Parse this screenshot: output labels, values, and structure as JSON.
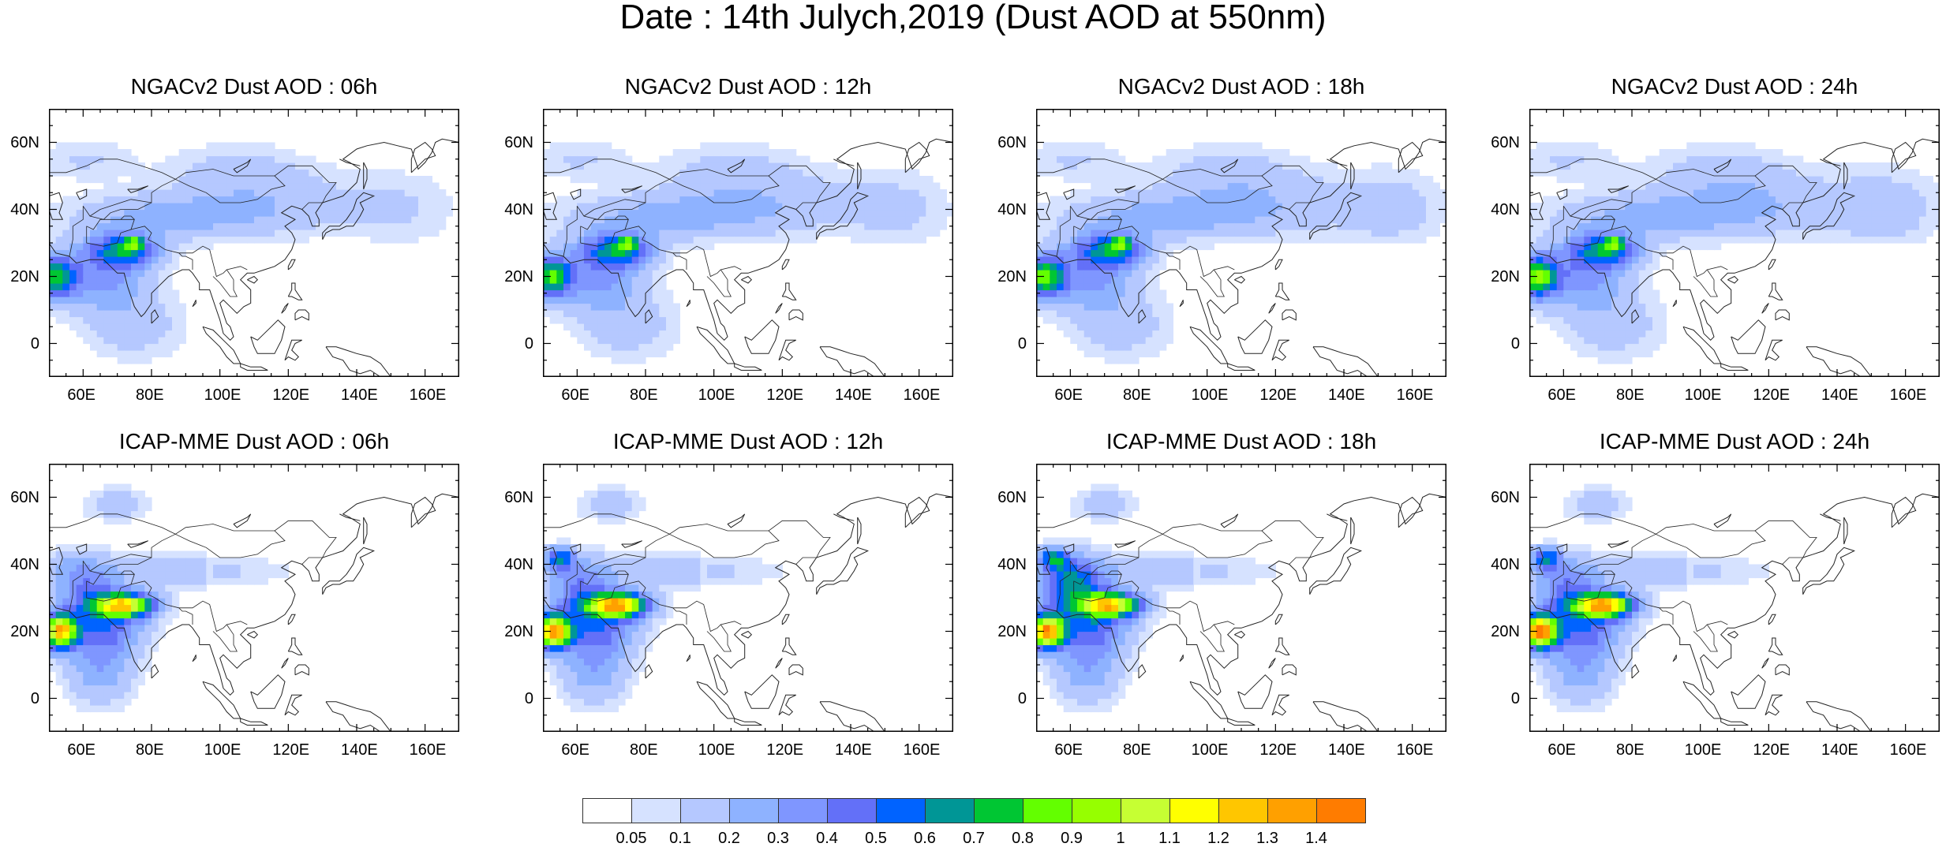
{
  "title": "Date : 14th Julych,2019 (Dust AOD at 550nm)",
  "panels": [
    {
      "title": "NGACv2 Dust AOD : 06h",
      "model": "NGACv2",
      "hour": "06h"
    },
    {
      "title": "NGACv2 Dust AOD : 12h",
      "model": "NGACv2",
      "hour": "12h"
    },
    {
      "title": "NGACv2 Dust AOD : 18h",
      "model": "NGACv2",
      "hour": "18h"
    },
    {
      "title": "NGACv2 Dust AOD : 24h",
      "model": "NGACv2",
      "hour": "24h"
    },
    {
      "title": "ICAP-MME Dust AOD : 06h",
      "model": "ICAP-MME",
      "hour": "06h"
    },
    {
      "title": "ICAP-MME Dust AOD : 12h",
      "model": "ICAP-MME",
      "hour": "12h"
    },
    {
      "title": "ICAP-MME Dust AOD : 18h",
      "model": "ICAP-MME",
      "hour": "18h"
    },
    {
      "title": "ICAP-MME Dust AOD : 24h",
      "model": "ICAP-MME",
      "hour": "24h"
    }
  ],
  "map": {
    "lon_range": [
      50,
      170
    ],
    "lat_range": [
      -10,
      70
    ],
    "lon_ticks": [
      "60E",
      "80E",
      "100E",
      "120E",
      "140E",
      "160E"
    ],
    "lat_ticks": [
      "60N",
      "40N",
      "20N",
      "0"
    ],
    "lon_tick_values": [
      60,
      80,
      100,
      120,
      140,
      160
    ],
    "lat_tick_values": [
      60,
      40,
      20,
      0
    ]
  },
  "colorbar": {
    "labels": [
      "0.05",
      "0.1",
      "0.2",
      "0.3",
      "0.4",
      "0.5",
      "0.6",
      "0.7",
      "0.8",
      "0.9",
      "1",
      "1.1",
      "1.2",
      "1.3",
      "1.4"
    ],
    "colors": [
      "#ffffff",
      "#d6e2ff",
      "#b5c8ff",
      "#8eb2ff",
      "#7f96ff",
      "#6370f8",
      "#0063ff",
      "#009696",
      "#00c633",
      "#63ff00",
      "#96ff00",
      "#c6ff33",
      "#ffff00",
      "#ffc600",
      "#ffa000",
      "#ff7c00",
      "#ff1900"
    ]
  }
}
